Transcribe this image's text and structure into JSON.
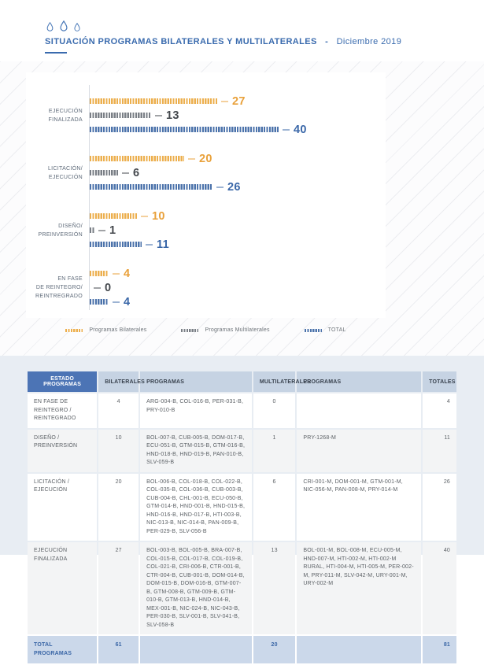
{
  "page": {
    "accent_color": "#3A6BAE",
    "bottom_bg": "#E8EDF3"
  },
  "header": {
    "logo_icon": "water-drops-icon",
    "title": "SITUACIÓN PROGRAMAS BILATERALES Y MULTILATERALES",
    "separator": "-",
    "date": "Diciembre 2019"
  },
  "chart_data": {
    "type": "bar",
    "orientation": "horizontal",
    "grid": false,
    "xlim": [
      0,
      42
    ],
    "legend_position": "bottom-center",
    "categories": [
      "EJECUCIÓN FINALIZADA",
      "LICITACIÓN/EJECUCIÓN",
      "DISEÑO/PREINVERSIÓN",
      "EN FASE DE REINTEGRO/REINTREGRADO"
    ],
    "category_label_lines": [
      [
        "EJECUCIÓN",
        "FINALIZADA"
      ],
      [
        "LICITACIÓN/",
        "EJECUCIÓN"
      ],
      [
        "DISEÑO/",
        "PREINVERSIÓN"
      ],
      [
        "EN FASE",
        "DE REINTEGRO/",
        "REINTREGRADO"
      ]
    ],
    "series": [
      {
        "name": "Programas Bilaterales",
        "values": [
          27,
          20,
          10,
          4
        ],
        "bar_color": "#ECAF4E",
        "number_color": "#E9A13B"
      },
      {
        "name": "Programas Multilaterales",
        "values": [
          13,
          6,
          1,
          0
        ],
        "bar_color": "#7A7F86",
        "number_color": "#44484D"
      },
      {
        "name": "TOTAL",
        "values": [
          40,
          26,
          11,
          4
        ],
        "bar_color": "#4C73AB",
        "number_color": "#3A67A8"
      }
    ]
  },
  "table": {
    "columns": [
      "ESTADO PROGRAMAS",
      "BILATERALES",
      "PROGRAMAS",
      "MULTILATERALES",
      "PROGRAMAS",
      "TOTALES"
    ],
    "rows": [
      {
        "estado": "EN FASE DE REINTEGRO / REINTEGRADO",
        "bilaterales": "4",
        "programas_b": "ARG-004-B, COL-016-B, PER-031-B, PRY-010-B",
        "multilaterales": "0",
        "programas_m": "",
        "totales": "4"
      },
      {
        "estado": "DISEÑO / PREINVERSIÓN",
        "bilaterales": "10",
        "programas_b": "BOL-007-B, CUB-005-B, DOM-017-B, ECU-051-B, GTM-015-B, GTM-016-B, HND-018-B, HND-019-B, PAN-010-B, SLV-059-B",
        "multilaterales": "1",
        "programas_m": "PRY-1268-M",
        "totales": "11"
      },
      {
        "estado": "LICITACIÓN / EJECUCIÓN",
        "bilaterales": "20",
        "programas_b": "BOL-006-B, COL-018-B, COL-022-B, COL-035-B, COL-036-B, CUB-003-B, CUB-004-B, CHL-001-B, ECU-050-B, GTM-014-B, HND-001-B, HND-015-B, HND-016-B, HND-017-B, HTI-003-B, NIC-013-B, NIC-014-B, PAN-009-B, PER-029-B, SLV-056-B",
        "multilaterales": "6",
        "programas_m": "CRI-001-M, DOM-001-M, GTM-001-M, NIC-056-M, PAN-008-M, PRY-014-M",
        "totales": "26"
      },
      {
        "estado": "EJECUCIÓN FINALIZADA",
        "bilaterales": "27",
        "programas_b": "BOL-003-B, BOL-005-B, BRA-007-B, COL-015-B, COL-017-B, COL-019-B, COL-021-B, CRI-006-B, CTR-001-B, CTR-004-B, CUB-001-B, DOM-014-B, DOM-015-B, DOM-016-B, GTM-007-B, GTM-008-B, GTM-009-B, GTM-010-B, GTM-013-B, HND-014-B, MEX-001-B, NIC-024-B, NIC-043-B, PER-030-B, SLV-001-B, SLV-041-B, SLV-058-B",
        "multilaterales": "13",
        "programas_m": "BOL-001-M, BOL-008-M, ECU-005-M, HND-007-M, HTI-002-M, HTI-002-M RURAL, HTI-004-M, HTI-005-M, PER-002-M, PRY-011-M, SLV-042-M, URY-001-M, URY-002-M",
        "totales": "40"
      }
    ],
    "total_row": {
      "label": "TOTAL PROGRAMAS",
      "bilaterales": "61",
      "multilaterales": "20",
      "totales": "81"
    }
  }
}
